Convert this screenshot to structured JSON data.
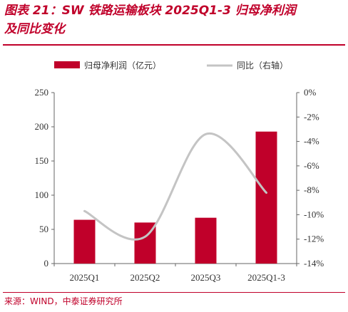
{
  "title": {
    "line1": "图表 21：SW 铁路运输板块 2025Q1-3 归母净利润",
    "line2": "及同比变化"
  },
  "source": "来源：WIND，中泰证券研究所",
  "colors": {
    "bar": "#c0002a",
    "line": "#c4c4c4",
    "accent": "#c0002a"
  },
  "chart_data": {
    "type": "bar",
    "categories": [
      "2025Q1",
      "2025Q2",
      "2025Q3",
      "2025Q1-3"
    ],
    "series": [
      {
        "name": "归母净利润（亿元）",
        "type": "bar",
        "axis": "left",
        "values": [
          64,
          60,
          67,
          193
        ]
      },
      {
        "name": "同比（右轴）",
        "type": "line",
        "axis": "right",
        "values": [
          -9.7,
          -11.8,
          -3.4,
          -8.2
        ]
      }
    ],
    "y_left": {
      "ylim": [
        0,
        250
      ],
      "ticks": [
        "0",
        "50",
        "100",
        "150",
        "200",
        "250"
      ]
    },
    "y_right": {
      "ylim": [
        -14,
        0
      ],
      "ticks": [
        "0%",
        "-2%",
        "-4%",
        "-6%",
        "-8%",
        "-10%",
        "-12%",
        "-14%"
      ]
    },
    "legend_position": "top",
    "grid": false
  }
}
